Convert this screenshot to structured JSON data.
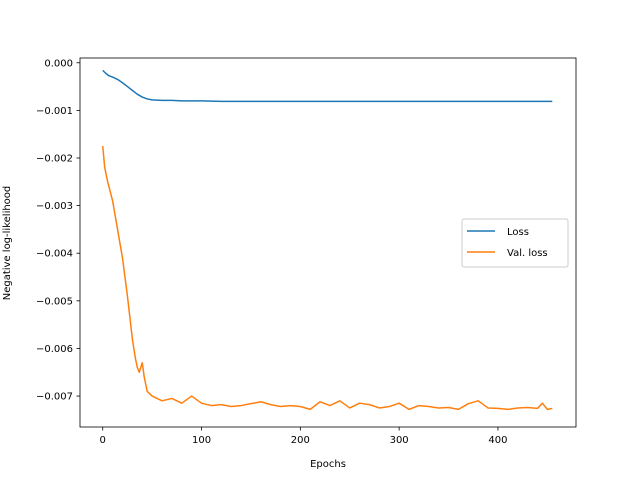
{
  "chart_data": {
    "type": "line",
    "xlabel": "Epochs",
    "ylabel": "Negative log-likelihood",
    "xlim": [
      -23,
      479
    ],
    "ylim": [
      -0.00765,
      0.0001
    ],
    "xticks": [
      0,
      100,
      200,
      300,
      400
    ],
    "yticks": [
      0.0,
      -0.001,
      -0.002,
      -0.003,
      -0.004,
      -0.005,
      -0.006,
      -0.007
    ],
    "ytick_labels": [
      "0.000",
      "−0.001",
      "−0.002",
      "−0.003",
      "−0.004",
      "−0.005",
      "−0.006",
      "−0.007"
    ],
    "grid": false,
    "legend_position": "center-right",
    "series": [
      {
        "name": "Loss",
        "color": "#1f77b4",
        "x": [
          0,
          3,
          6,
          10,
          15,
          20,
          25,
          30,
          35,
          40,
          45,
          50,
          60,
          70,
          80,
          90,
          100,
          120,
          140,
          160,
          180,
          200,
          220,
          240,
          260,
          280,
          300,
          320,
          340,
          360,
          380,
          400,
          420,
          440,
          455
        ],
        "y": [
          -0.00016,
          -0.00022,
          -0.00027,
          -0.0003,
          -0.00035,
          -0.00042,
          -0.0005,
          -0.00058,
          -0.00066,
          -0.00072,
          -0.00076,
          -0.00078,
          -0.00079,
          -0.00079,
          -0.0008,
          -0.0008,
          -0.0008,
          -0.00081,
          -0.00081,
          -0.00081,
          -0.00081,
          -0.00081,
          -0.00081,
          -0.00081,
          -0.00081,
          -0.00081,
          -0.00081,
          -0.00081,
          -0.00081,
          -0.00081,
          -0.00081,
          -0.00081,
          -0.00081,
          -0.00081,
          -0.00081
        ]
      },
      {
        "name": "Val. loss",
        "color": "#ff7f0e",
        "x": [
          0,
          2,
          5,
          10,
          15,
          20,
          25,
          30,
          33,
          35,
          37,
          40,
          42,
          45,
          50,
          55,
          60,
          70,
          80,
          90,
          100,
          110,
          120,
          130,
          140,
          150,
          160,
          170,
          180,
          190,
          200,
          210,
          220,
          230,
          240,
          250,
          260,
          270,
          280,
          290,
          300,
          310,
          320,
          330,
          340,
          350,
          360,
          370,
          380,
          390,
          400,
          410,
          420,
          430,
          440,
          445,
          450,
          455
        ],
        "y": [
          -0.00175,
          -0.0022,
          -0.0025,
          -0.0029,
          -0.0035,
          -0.0041,
          -0.0049,
          -0.0058,
          -0.0062,
          -0.0064,
          -0.0065,
          -0.0063,
          -0.0066,
          -0.0069,
          -0.007,
          -0.00705,
          -0.0071,
          -0.00705,
          -0.00715,
          -0.007,
          -0.00715,
          -0.0072,
          -0.00718,
          -0.00722,
          -0.0072,
          -0.00716,
          -0.00712,
          -0.00718,
          -0.00722,
          -0.0072,
          -0.00722,
          -0.00728,
          -0.00712,
          -0.0072,
          -0.0071,
          -0.00725,
          -0.00715,
          -0.00718,
          -0.00725,
          -0.00722,
          -0.00715,
          -0.00728,
          -0.0072,
          -0.00722,
          -0.00725,
          -0.00724,
          -0.00728,
          -0.00716,
          -0.0071,
          -0.00725,
          -0.00726,
          -0.00728,
          -0.00725,
          -0.00724,
          -0.00726,
          -0.00715,
          -0.00728,
          -0.00726
        ]
      }
    ]
  }
}
